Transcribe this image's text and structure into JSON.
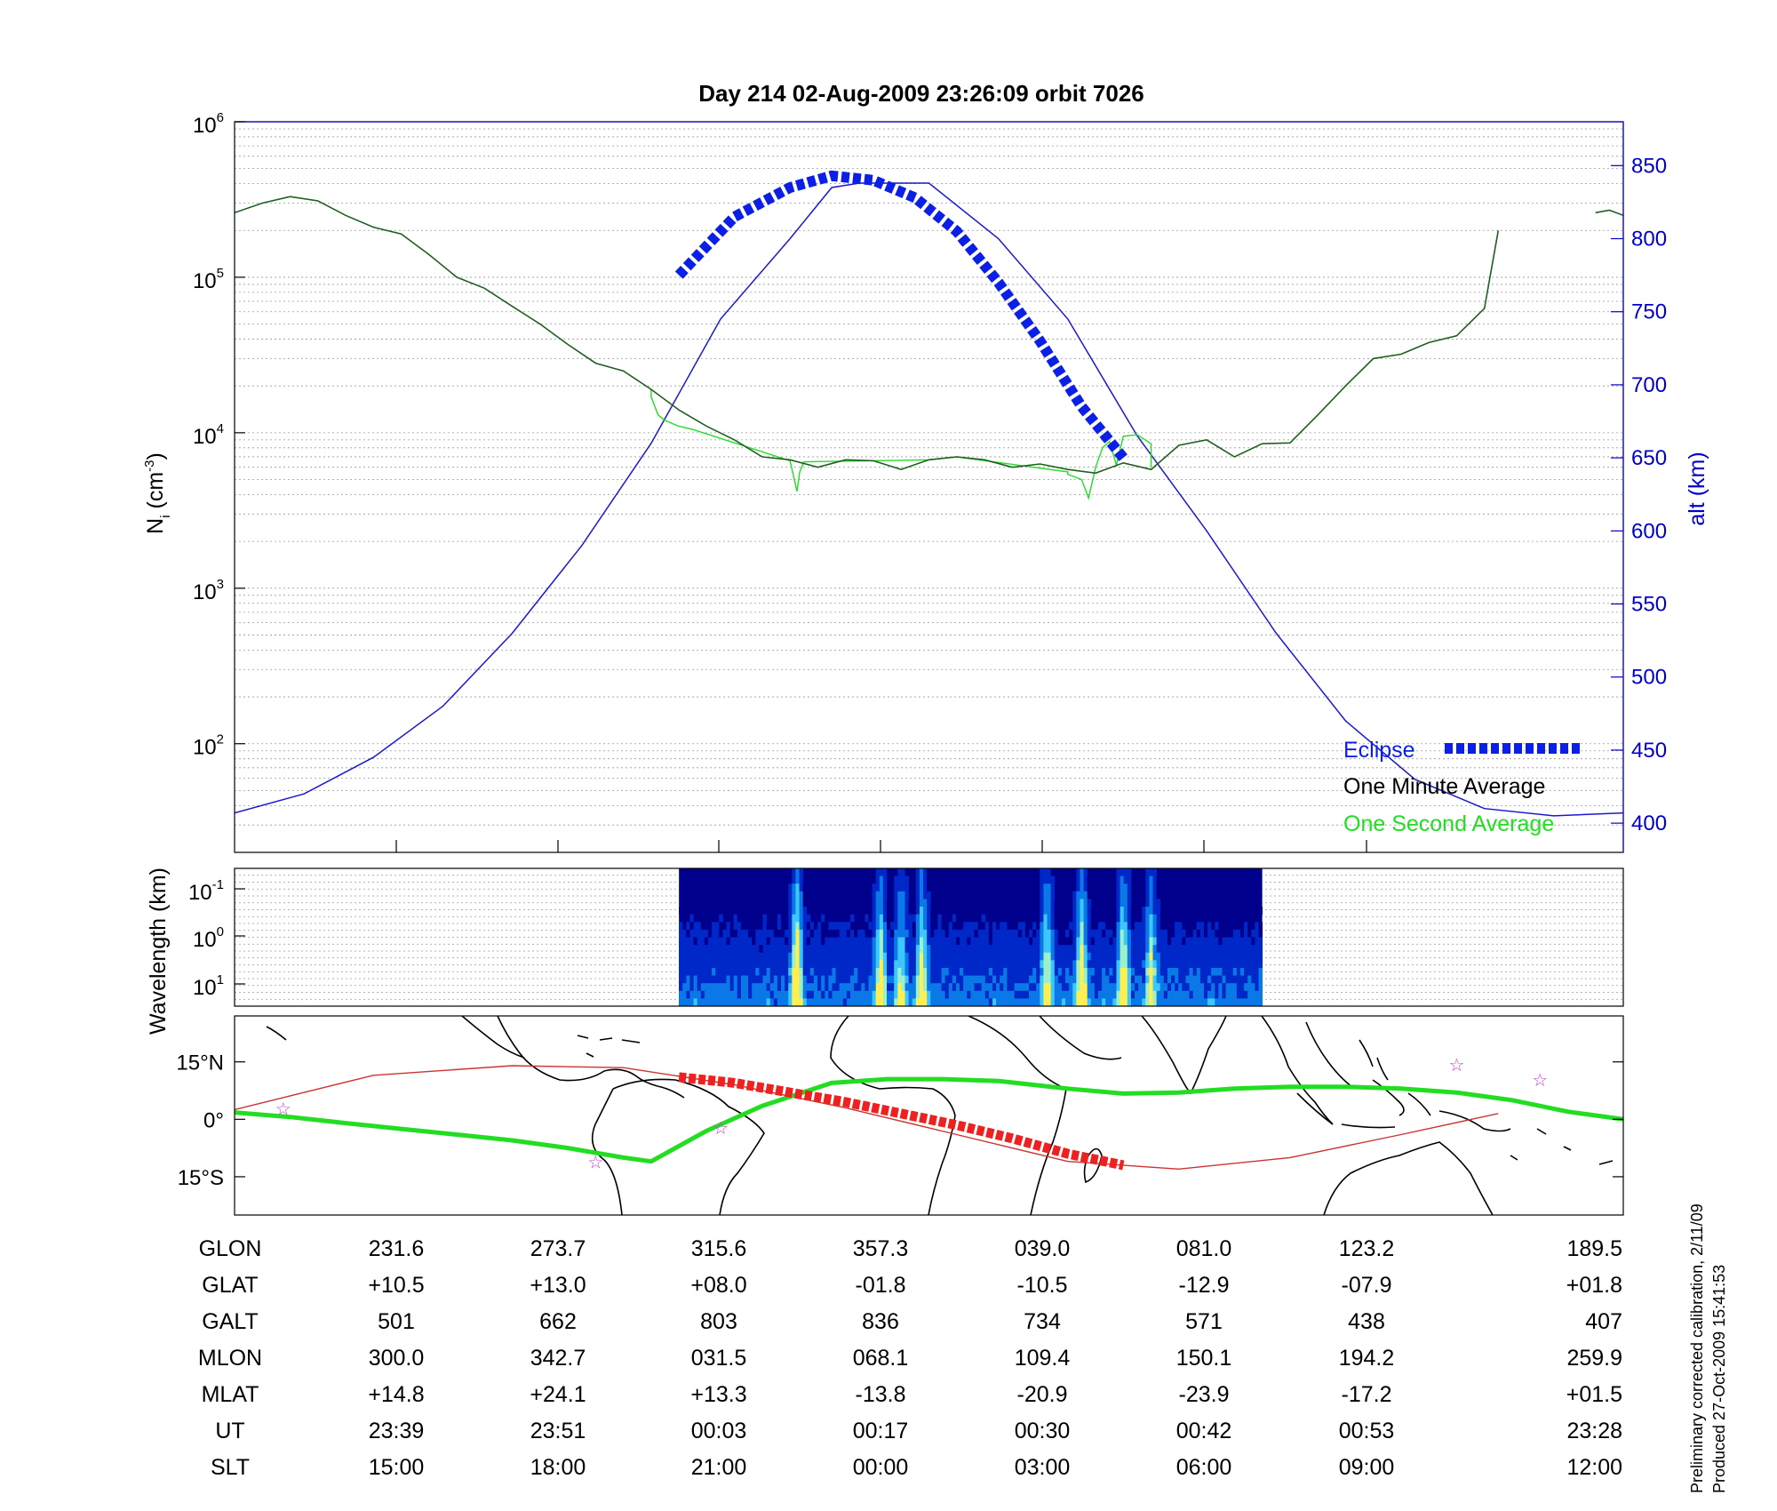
{
  "title": "Day 214  02-Aug-2009 23:26:09   orbit 7026",
  "colors": {
    "one_minute": "#1f5f1f",
    "one_second": "#22dd22",
    "altitude": "#1a1acc",
    "eclipse": "#0b1fe6",
    "track": "#22dd22",
    "track_eclipse": "#ee2020",
    "magnetic_equator": "#cc3333",
    "star": "#cc44cc"
  },
  "chart_data": [
    {
      "type": "line",
      "name": "ion-density",
      "yscale": "log",
      "ylim": [
        20,
        1000000
      ],
      "ylabel": "N_i (cm^-3)",
      "y_tick_base": "10",
      "y_tick_exponents": [
        "2",
        "3",
        "4",
        "5",
        "6"
      ],
      "y2lim": [
        380,
        880
      ],
      "y2label": "alt (km)",
      "y2ticks": [
        400,
        450,
        500,
        550,
        600,
        650,
        700,
        750,
        800,
        850
      ],
      "xlim": [
        0,
        1
      ],
      "grid": true,
      "legend_position": "bottom-right",
      "legend": [
        "Eclipse",
        "One Minute Average",
        "One Second Average"
      ],
      "series": [
        {
          "name": "One Minute Average",
          "x": [
            0.0,
            0.02,
            0.04,
            0.06,
            0.08,
            0.1,
            0.12,
            0.14,
            0.16,
            0.18,
            0.2,
            0.22,
            0.24,
            0.26,
            0.28,
            0.3,
            0.32,
            0.34,
            0.36,
            0.38,
            0.4,
            0.42,
            0.44,
            0.46,
            0.48,
            0.5,
            0.52,
            0.54,
            0.56,
            0.58,
            0.6,
            0.62,
            0.64,
            0.66,
            0.68,
            0.7,
            0.72,
            0.74,
            0.76,
            0.78,
            0.8,
            0.82,
            0.84,
            0.86,
            0.88,
            0.9,
            0.91
          ],
          "values": [
            260000,
            300000,
            330000,
            310000,
            250000,
            210000,
            190000,
            140000,
            100000,
            85000,
            65000,
            50000,
            37000,
            28000,
            25000,
            19000,
            14000,
            11000,
            9000,
            7000,
            6700,
            6000,
            6700,
            6600,
            5800,
            6700,
            7000,
            6700,
            6000,
            6300,
            5800,
            5500,
            6400,
            5800,
            8300,
            9000,
            7000,
            8500,
            8600,
            13000,
            20000,
            30000,
            32000,
            38000,
            42000,
            63000,
            200000
          ]
        },
        {
          "name": "One Minute Average (end)",
          "x": [
            0.98,
            0.99,
            1.0
          ],
          "values": [
            260000,
            270000,
            250000
          ]
        },
        {
          "name": "One Second Average",
          "x": [
            0.3,
            0.3,
            0.305,
            0.31,
            0.32,
            0.33,
            0.4,
            0.405,
            0.407,
            0.41,
            0.5,
            0.52,
            0.6,
            0.6,
            0.61,
            0.615,
            0.62,
            0.625,
            0.63,
            0.635,
            0.64,
            0.65,
            0.66,
            0.66
          ],
          "values": [
            19000,
            17000,
            13000,
            12000,
            11000,
            10500,
            6600,
            4200,
            5600,
            6500,
            6700,
            7000,
            5600,
            5400,
            5000,
            3800,
            6000,
            8000,
            8800,
            6200,
            9500,
            9700,
            8500,
            6000
          ]
        },
        {
          "name": "Altitude",
          "axis": "y2",
          "x": [
            0.0,
            0.05,
            0.1,
            0.15,
            0.2,
            0.25,
            0.3,
            0.35,
            0.4,
            0.43,
            0.45,
            0.5,
            0.55,
            0.6,
            0.65,
            0.7,
            0.75,
            0.8,
            0.85,
            0.9,
            0.95,
            1.0
          ],
          "values": [
            407,
            420,
            445,
            480,
            530,
            590,
            660,
            745,
            800,
            835,
            838,
            838,
            800,
            745,
            665,
            600,
            530,
            470,
            430,
            410,
            405,
            407
          ]
        },
        {
          "name": "Eclipse",
          "axis": "y2",
          "x": [
            0.32,
            0.36,
            0.4,
            0.43,
            0.46,
            0.49,
            0.52,
            0.55,
            0.58,
            0.61,
            0.64
          ],
          "values": [
            775,
            815,
            835,
            843,
            840,
            828,
            805,
            770,
            730,
            685,
            650
          ]
        }
      ]
    },
    {
      "type": "heatmap",
      "name": "wavelength-spectrogram",
      "ylabel": "Wavelength (km)",
      "y_tick_base": "10",
      "y_tick_exponents": [
        "-1",
        "0",
        "1"
      ],
      "x_range": [
        0.32,
        0.74
      ],
      "colormap": [
        "#00008c",
        "#0028c8",
        "#0a78e6",
        "#3cc8ff",
        "#9ef0c8",
        "#fff050",
        "#ff9628"
      ],
      "bursts": [
        {
          "x": 0.405,
          "intensity": 1.0
        },
        {
          "x": 0.465,
          "intensity": 0.8
        },
        {
          "x": 0.48,
          "intensity": 0.65
        },
        {
          "x": 0.495,
          "intensity": 0.8
        },
        {
          "x": 0.585,
          "intensity": 0.75
        },
        {
          "x": 0.61,
          "intensity": 0.85
        },
        {
          "x": 0.64,
          "intensity": 0.85
        },
        {
          "x": 0.66,
          "intensity": 0.7
        }
      ]
    },
    {
      "type": "map",
      "name": "ground-track",
      "y_ticks": [
        "15°N",
        "0°",
        "15°S"
      ],
      "lat_range": [
        -25,
        27
      ],
      "track_lat": [
        1.8,
        0.6,
        -1.0,
        -2.5,
        -4.0,
        -5.5,
        -7.5,
        -10.0,
        -11.0,
        -9.0,
        -3.0,
        3.5,
        9.5,
        10.5,
        10.5,
        10.0,
        8.0,
        6.7,
        7.0,
        8.0,
        8.5,
        8.5,
        8.0,
        7.0,
        5.0,
        2.0,
        0.0
      ],
      "track_x": [
        0.0,
        0.04,
        0.08,
        0.12,
        0.16,
        0.2,
        0.24,
        0.28,
        0.3,
        0.31,
        0.34,
        0.38,
        0.43,
        0.47,
        0.51,
        0.55,
        0.6,
        0.64,
        0.68,
        0.72,
        0.76,
        0.8,
        0.84,
        0.88,
        0.92,
        0.96,
        1.0
      ],
      "eclipse_track_x": [
        0.32,
        0.36,
        0.4,
        0.44,
        0.48,
        0.52,
        0.56,
        0.6,
        0.64
      ],
      "eclipse_track_lat": [
        11.0,
        9.5,
        7.0,
        4.5,
        1.5,
        -1.5,
        -5.0,
        -9.0,
        -12.0
      ],
      "magnetic_equator_x": [
        0.0,
        0.1,
        0.2,
        0.28,
        0.36,
        0.44,
        0.52,
        0.6,
        0.68,
        0.76,
        0.84,
        0.91
      ],
      "magnetic_equator_lat": [
        2.5,
        11.5,
        14.0,
        13.5,
        9.0,
        3.0,
        -4.0,
        -11.0,
        -13.0,
        -10.0,
        -4.0,
        1.5
      ],
      "stars_x": [
        0.035,
        0.26,
        0.35,
        0.88,
        0.94
      ],
      "stars_lat": [
        3.0,
        -11.0,
        -2.0,
        14.5,
        10.5
      ]
    }
  ],
  "table": {
    "labels": [
      "GLON",
      "GLAT",
      "GALT",
      "MLON",
      "MLAT",
      "UT",
      "SLT"
    ],
    "columns": [
      [
        "231.6",
        "+10.5",
        "501",
        "300.0",
        "+14.8",
        "23:39",
        "15:00"
      ],
      [
        "273.7",
        "+13.0",
        "662",
        "342.7",
        "+24.1",
        "23:51",
        "18:00"
      ],
      [
        "315.6",
        "+08.0",
        "803",
        "031.5",
        "+13.3",
        "00:03",
        "21:00"
      ],
      [
        "357.3",
        "-01.8",
        "836",
        "068.1",
        "-13.8",
        "00:17",
        "00:00"
      ],
      [
        "039.0",
        "-10.5",
        "734",
        "109.4",
        "-20.9",
        "00:30",
        "03:00"
      ],
      [
        "081.0",
        "-12.9",
        "571",
        "150.1",
        "-23.9",
        "00:42",
        "06:00"
      ],
      [
        "123.2",
        "-07.9",
        "438",
        "194.2",
        "-17.2",
        "00:53",
        "09:00"
      ],
      [
        "189.5",
        "+01.8",
        "407",
        "259.9",
        "+01.5",
        "23:28",
        "12:00"
      ]
    ]
  },
  "footer": {
    "line1": "Preliminary corrected calibration, 2/11/09",
    "line2": "Produced 27-Oct-2009 15:41:53"
  }
}
